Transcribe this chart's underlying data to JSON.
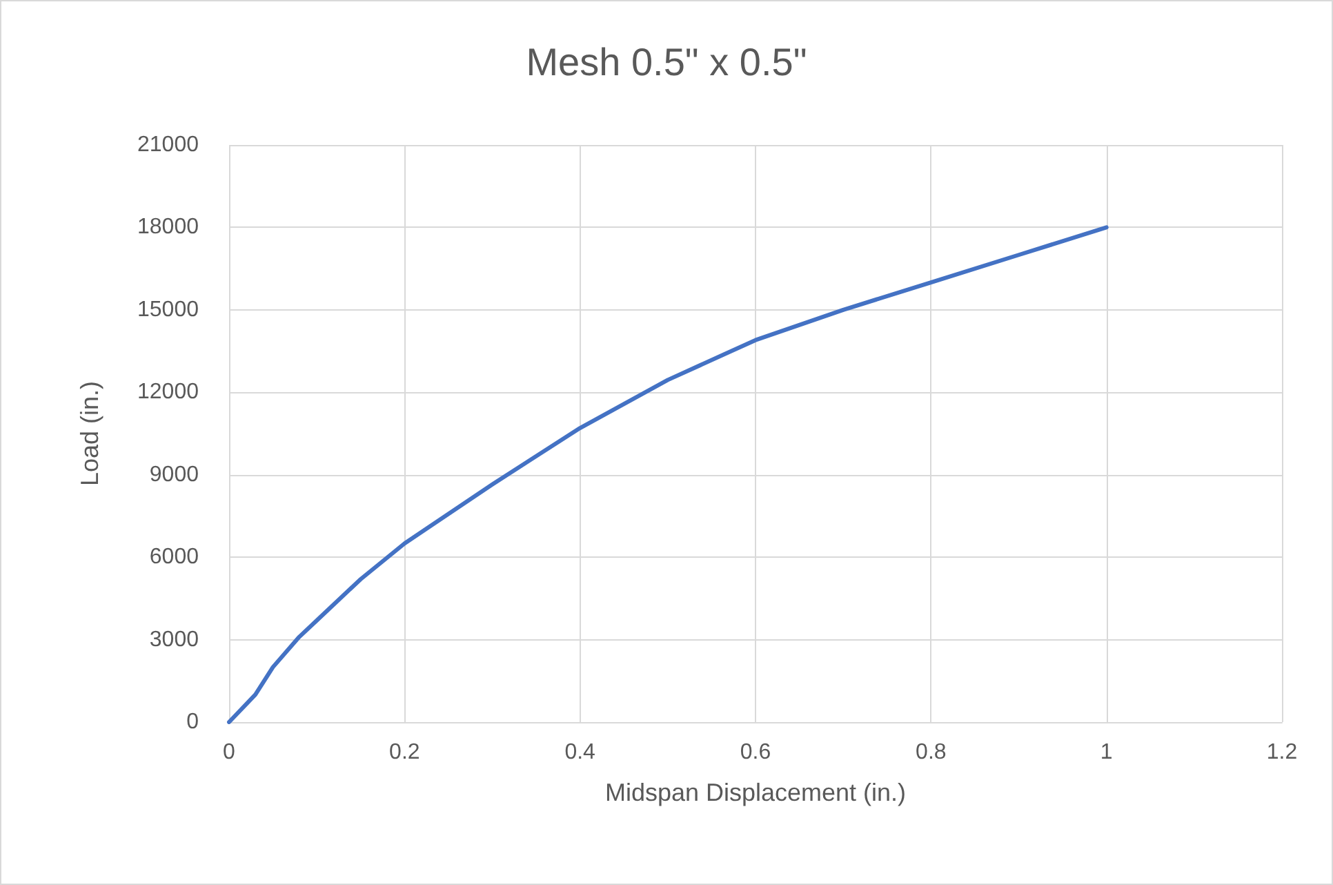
{
  "chart_data": {
    "type": "line",
    "title": "Mesh 0.5\" x 0.5\"",
    "xlabel": "Midspan Displacement (in.)",
    "ylabel": "Load (in.)",
    "x": [
      0,
      0.03,
      0.05,
      0.08,
      0.1,
      0.15,
      0.2,
      0.3,
      0.4,
      0.5,
      0.6,
      0.7,
      0.8,
      0.9,
      1
    ],
    "series": [
      {
        "color": "#4472c4",
        "values": [
          0,
          1000,
          2000,
          3100,
          3700,
          5200,
          6500,
          8650,
          10700,
          12450,
          13900,
          15000,
          16000,
          17000,
          18000
        ]
      }
    ],
    "xlim": [
      0,
      1.2
    ],
    "xticks": [
      0,
      0.2,
      0.4,
      0.6,
      0.8,
      1,
      1.2
    ],
    "ylim": [
      0,
      21000
    ],
    "yticks": [
      0,
      3000,
      6000,
      9000,
      12000,
      15000,
      18000,
      21000
    ],
    "grid": true,
    "marker": "none",
    "line_style": "solid"
  }
}
